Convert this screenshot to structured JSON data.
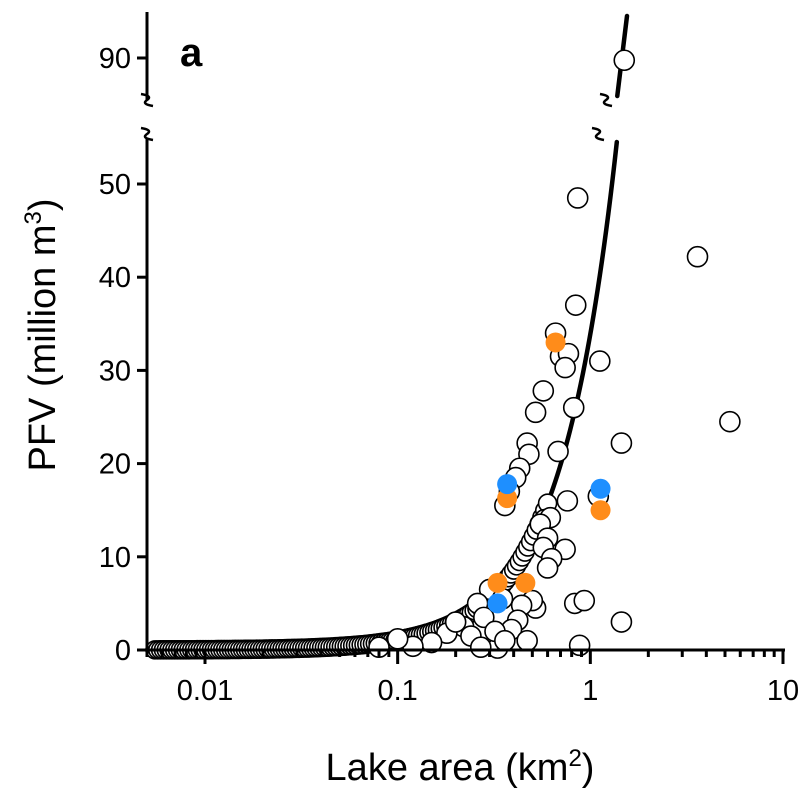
{
  "chart_data": {
    "type": "scatter",
    "panel_label": "a",
    "xlabel": "Lake area (km",
    "xlabel_sup": "2",
    "xlabel_end": ")",
    "ylabel": "PFV (million m",
    "ylabel_sup": "3",
    "ylabel_end": ")",
    "x_scale": "log",
    "xlim": [
      0.005,
      10
    ],
    "ylim_lower": [
      0,
      55
    ],
    "ylim_upper_tick": 90,
    "y_axis_break": true,
    "x_ticks": [
      {
        "value": 0.01,
        "label": "0.01"
      },
      {
        "value": 0.1,
        "label": "0.1"
      },
      {
        "value": 1,
        "label": "1"
      },
      {
        "value": 10,
        "label": "10"
      }
    ],
    "y_ticks": [
      {
        "value": 0,
        "label": "0"
      },
      {
        "value": 10,
        "label": "10"
      },
      {
        "value": 20,
        "label": "20"
      },
      {
        "value": 30,
        "label": "30"
      },
      {
        "value": 40,
        "label": "40"
      },
      {
        "value": 50,
        "label": "50"
      },
      {
        "value": 90,
        "label": "90"
      }
    ],
    "grid": false,
    "legend": "none",
    "fit_curve": {
      "form": "power",
      "coefficient": 33.9,
      "exponent": 1.5,
      "x_max": 1.55
    },
    "colors": {
      "open_point": "#ffffff",
      "orange": "#ff8c1a",
      "blue": "#1e8fff",
      "line": "#000000"
    },
    "series": [
      {
        "marker": "open-circle",
        "points": [
          [
            1.5,
            89.5
          ],
          [
            0.86,
            48.5
          ],
          [
            3.6,
            42.2
          ],
          [
            5.3,
            24.5
          ],
          [
            0.84,
            37
          ],
          [
            0.66,
            34
          ],
          [
            0.7,
            31.5
          ],
          [
            0.77,
            31.8
          ],
          [
            0.74,
            30.3
          ],
          [
            1.12,
            31
          ],
          [
            0.57,
            27.8
          ],
          [
            0.52,
            25.5
          ],
          [
            0.82,
            26
          ],
          [
            1.45,
            22.2
          ],
          [
            0.47,
            22.2
          ],
          [
            0.48,
            21
          ],
          [
            0.68,
            21.3
          ],
          [
            0.43,
            19.5
          ],
          [
            0.41,
            18.5
          ],
          [
            0.38,
            17
          ],
          [
            0.36,
            15.5
          ],
          [
            0.76,
            16
          ],
          [
            1.1,
            16.5
          ],
          [
            0.58,
            14
          ],
          [
            0.62,
            14.2
          ],
          [
            0.55,
            13.5
          ],
          [
            0.6,
            12
          ],
          [
            0.57,
            11
          ],
          [
            0.74,
            10.8
          ],
          [
            0.63,
            9.8
          ],
          [
            0.6,
            8.8
          ],
          [
            0.83,
            5
          ],
          [
            0.93,
            5.3
          ],
          [
            1.45,
            3
          ],
          [
            0.88,
            0.5
          ],
          [
            0.52,
            4.5
          ],
          [
            0.5,
            5.3
          ],
          [
            0.44,
            4.8
          ],
          [
            0.42,
            3.2
          ],
          [
            0.39,
            2.2
          ],
          [
            0.47,
            1
          ],
          [
            0.33,
            0.2
          ],
          [
            0.3,
            6.5
          ],
          [
            0.35,
            5.5
          ],
          [
            0.26,
            5
          ],
          [
            0.22,
            2.5
          ],
          [
            0.18,
            1.8
          ],
          [
            0.15,
            0.8
          ],
          [
            0.12,
            0.4
          ],
          [
            0.1,
            1.2
          ],
          [
            0.08,
            0.3
          ],
          [
            0.28,
            3.5
          ],
          [
            0.24,
            1.5
          ],
          [
            0.2,
            3
          ],
          [
            0.32,
            2
          ],
          [
            0.36,
            1
          ],
          [
            0.27,
            0.3
          ]
        ]
      },
      {
        "marker": "filled-orange",
        "points": [
          [
            0.66,
            33
          ],
          [
            0.37,
            16.3
          ],
          [
            1.13,
            15
          ],
          [
            0.33,
            7.2
          ],
          [
            0.46,
            7.2
          ]
        ]
      },
      {
        "marker": "filled-blue",
        "points": [
          [
            0.37,
            17.8
          ],
          [
            1.13,
            17.3
          ],
          [
            0.33,
            5
          ]
        ]
      }
    ]
  }
}
